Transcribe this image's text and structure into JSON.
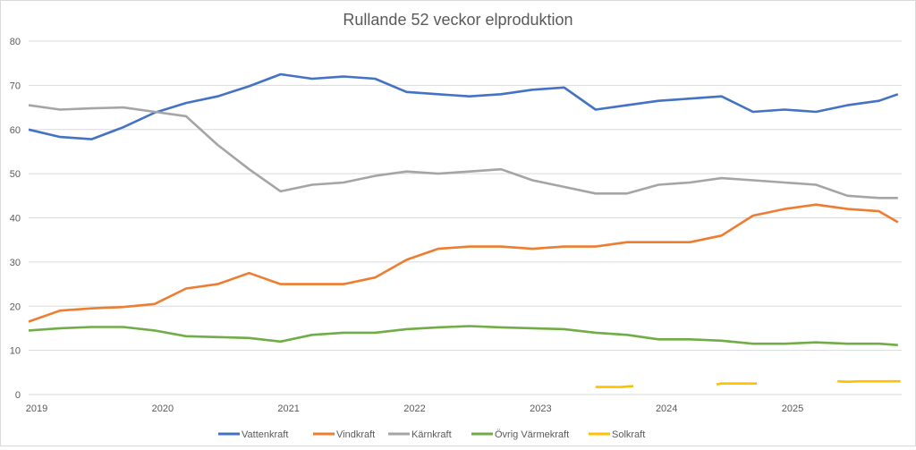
{
  "chart_data": {
    "type": "line",
    "title": "Rullande 52 veckor elproduktion",
    "xlabel": "",
    "ylabel": "",
    "ylim": [
      0,
      80
    ],
    "yticks": [
      0,
      10,
      20,
      30,
      40,
      50,
      60,
      70,
      80
    ],
    "xlim": [
      2019,
      2025.93
    ],
    "xticks": [
      "2019",
      "2020",
      "2021",
      "2022",
      "2023",
      "2024",
      "2025"
    ],
    "grid": true,
    "legend": "bottom",
    "x": [
      2019.0,
      2019.25,
      2019.5,
      2019.75,
      2020.0,
      2020.25,
      2020.5,
      2020.75,
      2021.0,
      2021.25,
      2021.5,
      2021.75,
      2022.0,
      2022.25,
      2022.5,
      2022.75,
      2023.0,
      2023.25,
      2023.5,
      2023.75,
      2024.0,
      2024.25,
      2024.5,
      2024.75,
      2025.0,
      2025.25,
      2025.5,
      2025.75,
      2025.9
    ],
    "series": [
      {
        "name": "Vattenkraft",
        "color": "#4472c4",
        "values": [
          60,
          58.3,
          57.8,
          60.5,
          63.8,
          66,
          67.5,
          69.8,
          72.5,
          71.5,
          72,
          71.5,
          68.5,
          68,
          67.5,
          68,
          69,
          69.5,
          64.5,
          65.5,
          66.5,
          67,
          67.5,
          64,
          64.5,
          64,
          65.5,
          66.5,
          68
        ]
      },
      {
        "name": "Vindkraft",
        "color": "#ed7d31",
        "values": [
          16.5,
          19,
          19.5,
          19.8,
          20.5,
          24,
          25,
          27.5,
          25,
          25,
          25,
          26.5,
          30.5,
          33,
          33.5,
          33.5,
          33,
          33.5,
          33.5,
          34.5,
          34.5,
          34.5,
          36,
          40.5,
          42,
          43,
          42,
          41.5,
          39
        ]
      },
      {
        "name": "Kärnkraft",
        "color": "#a5a5a5",
        "values": [
          65.5,
          64.5,
          64.8,
          65,
          64,
          63,
          56.5,
          51,
          46,
          47.5,
          48,
          49.5,
          50.5,
          50,
          50.5,
          51,
          48.5,
          47,
          45.5,
          45.5,
          47.5,
          48,
          49,
          48.5,
          48,
          47.5,
          45,
          44.5,
          44.5
        ]
      },
      {
        "name": "Övrig Värmekraft",
        "color": "#70ad47",
        "values": [
          14.5,
          15,
          15.3,
          15.3,
          14.5,
          13.2,
          13,
          12.8,
          12,
          13.5,
          14,
          14,
          14.8,
          15.2,
          15.5,
          15.2,
          15,
          14.8,
          14,
          13.5,
          12.5,
          12.5,
          12.2,
          11.5,
          11.5,
          11.8,
          11.5,
          11.5,
          11.2
        ]
      },
      {
        "name": "Solkraft",
        "color": "#ffc000",
        "segments": [
          [
            [
              2023.5,
              1.7
            ],
            [
              2023.7,
              1.7
            ],
            [
              2023.8,
              1.9
            ]
          ],
          [
            [
              2024.46,
              2.3
            ],
            [
              2024.5,
              2.5
            ],
            [
              2024.78,
              2.5
            ]
          ],
          [
            [
              2025.42,
              3.0
            ],
            [
              2025.5,
              2.9
            ],
            [
              2025.6,
              3.0
            ],
            [
              2025.92,
              3.0
            ]
          ]
        ]
      }
    ]
  }
}
